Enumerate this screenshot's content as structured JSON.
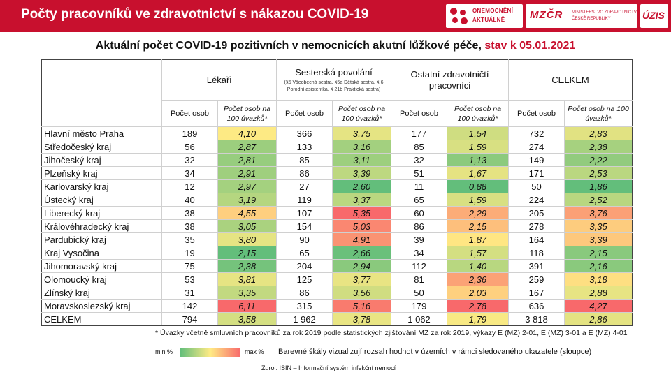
{
  "header": {
    "title": "Počty pracovníků ve zdravotnictví s nákazou COVID-19",
    "logo_covid_line1": "ONEMOCNĚNÍ",
    "logo_covid_line2": "AKTUÁLNĚ",
    "logo_mz_mark": "MZČR",
    "logo_mz_line1": "MINISTERSTVO ZDRAVOTNICTVÍ",
    "logo_mz_line2": "ČESKÉ REPUBLIKY",
    "logo_uzis": "ÚZIS"
  },
  "subtitle": {
    "part1": "Aktuální počet COVID-19 pozitivních ",
    "underlined": "v nemocnicích akutní lůžkové péče",
    "part2": ", ",
    "date": "stav k 05.01.2021"
  },
  "table": {
    "groups": [
      {
        "title": "Lékaři",
        "note": ""
      },
      {
        "title": "Sesterská povolání",
        "note": "(§5 Všeobecná sestra, §5a Dětská sestra, § 6 Porodní asistentka, § 21b Praktická sestra)"
      },
      {
        "title": "Ostatní zdravotničtí pracovníci",
        "note": ""
      },
      {
        "title": "CELKEM",
        "note": ""
      }
    ],
    "col_count_label": "Počet osob",
    "col_rate_label": "Počet osob na 100 úvazků*",
    "rows": [
      {
        "region": "Hlavní město Praha",
        "v": [
          "189",
          "4,10",
          "366",
          "3,75",
          "177",
          "1,54",
          "732",
          "2,83"
        ]
      },
      {
        "region": "Středočeský kraj",
        "v": [
          "56",
          "2,87",
          "133",
          "3,16",
          "85",
          "1,59",
          "274",
          "2,38"
        ]
      },
      {
        "region": "Jihočeský kraj",
        "v": [
          "32",
          "2,81",
          "85",
          "3,11",
          "32",
          "1,13",
          "149",
          "2,22"
        ]
      },
      {
        "region": "Plzeňský kraj",
        "v": [
          "34",
          "2,91",
          "86",
          "3,39",
          "51",
          "1,67",
          "171",
          "2,53"
        ]
      },
      {
        "region": "Karlovarský kraj",
        "v": [
          "12",
          "2,97",
          "27",
          "2,60",
          "11",
          "0,88",
          "50",
          "1,86"
        ]
      },
      {
        "region": "Ústecký kraj",
        "v": [
          "40",
          "3,19",
          "119",
          "3,37",
          "65",
          "1,59",
          "224",
          "2,52"
        ]
      },
      {
        "region": "Liberecký kraj",
        "v": [
          "38",
          "4,55",
          "107",
          "5,35",
          "60",
          "2,29",
          "205",
          "3,76"
        ]
      },
      {
        "region": "Královéhradecký kraj",
        "v": [
          "38",
          "3,05",
          "154",
          "5,03",
          "86",
          "2,15",
          "278",
          "3,35"
        ]
      },
      {
        "region": "Pardubický kraj",
        "v": [
          "35",
          "3,80",
          "90",
          "4,91",
          "39",
          "1,87",
          "164",
          "3,39"
        ]
      },
      {
        "region": "Kraj Vysočina",
        "v": [
          "19",
          "2,15",
          "65",
          "2,66",
          "34",
          "1,57",
          "118",
          "2,15"
        ]
      },
      {
        "region": "Jihomoravský kraj",
        "v": [
          "75",
          "2,38",
          "204",
          "2,94",
          "112",
          "1,40",
          "391",
          "2,16"
        ]
      },
      {
        "region": "Olomoucký kraj",
        "v": [
          "53",
          "3,81",
          "125",
          "3,77",
          "81",
          "2,36",
          "259",
          "3,18"
        ]
      },
      {
        "region": "Zlínský kraj",
        "v": [
          "31",
          "3,35",
          "86",
          "3,56",
          "50",
          "2,03",
          "167",
          "2,88"
        ]
      },
      {
        "region": "Moravskoslezský kraj",
        "v": [
          "142",
          "6,11",
          "315",
          "5,16",
          "179",
          "2,78",
          "636",
          "4,27"
        ]
      },
      {
        "region": "CELKEM",
        "v": [
          "794",
          "3,58",
          "1 962",
          "3,78",
          "1 062",
          "1,79",
          "3 818",
          "2,86"
        ]
      }
    ]
  },
  "footnote": "* Úvazky včetně smluvních pracovníků za rok 2019 podle statistických zjišťování MZ za rok 2019, výkazy E (MZ) 2-01, E (MZ) 3-01 a E (MZ) 4-01",
  "legend": {
    "min_label": "min %",
    "max_label": "max %",
    "text": "Barevné škály vizualizují rozsah hodnot v územích v rámci sledovaného ukazatele (sloupce)",
    "colors": {
      "min": "#63be7b",
      "mid": "#ffeb84",
      "max": "#f8696b"
    }
  },
  "source": "Zdroj: ISIN – Informační systém infekční nemocí"
}
